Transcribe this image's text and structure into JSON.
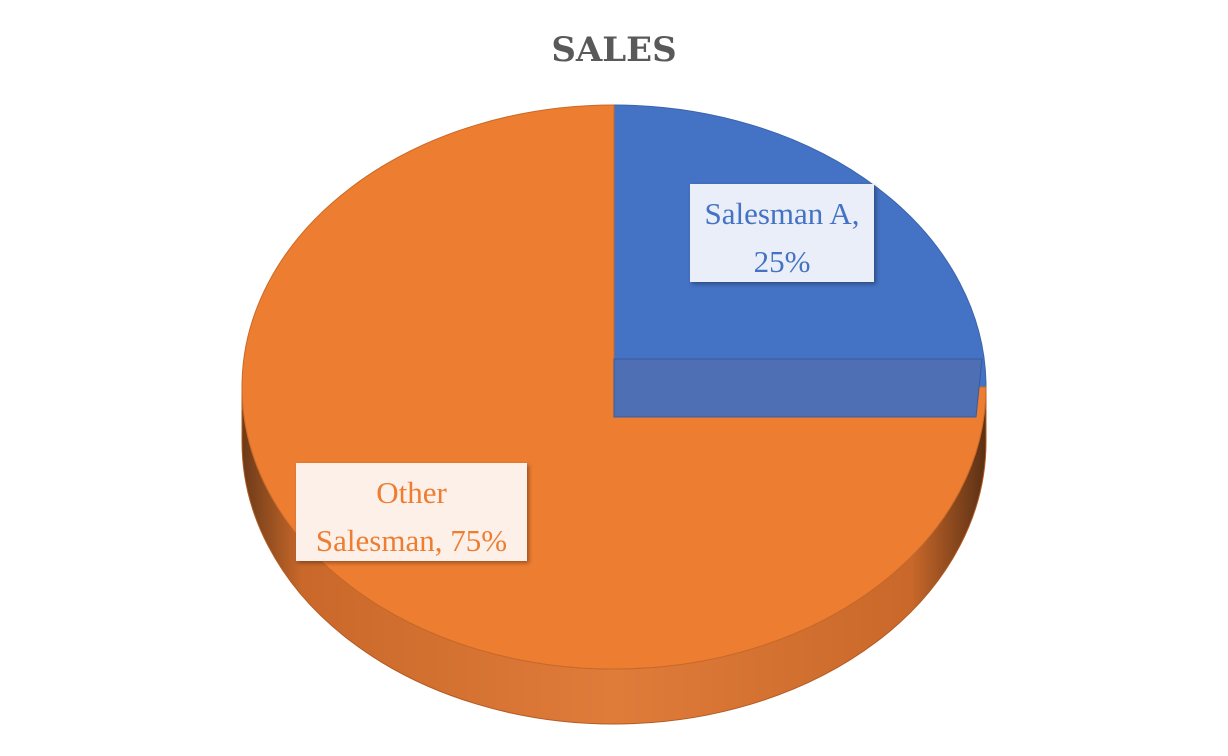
{
  "chart_data": {
    "type": "pie",
    "title": "SALES",
    "categories": [
      "Salesman A",
      "Other Salesman"
    ],
    "values": [
      25,
      75
    ],
    "unit": "%",
    "labels": [
      {
        "lines": [
          "Salesman A,",
          "25%"
        ]
      },
      {
        "lines": [
          "Other",
          "Salesman, 75%"
        ]
      }
    ],
    "colors": [
      "#4472C4",
      "#ED7D31"
    ],
    "style": "3d"
  }
}
